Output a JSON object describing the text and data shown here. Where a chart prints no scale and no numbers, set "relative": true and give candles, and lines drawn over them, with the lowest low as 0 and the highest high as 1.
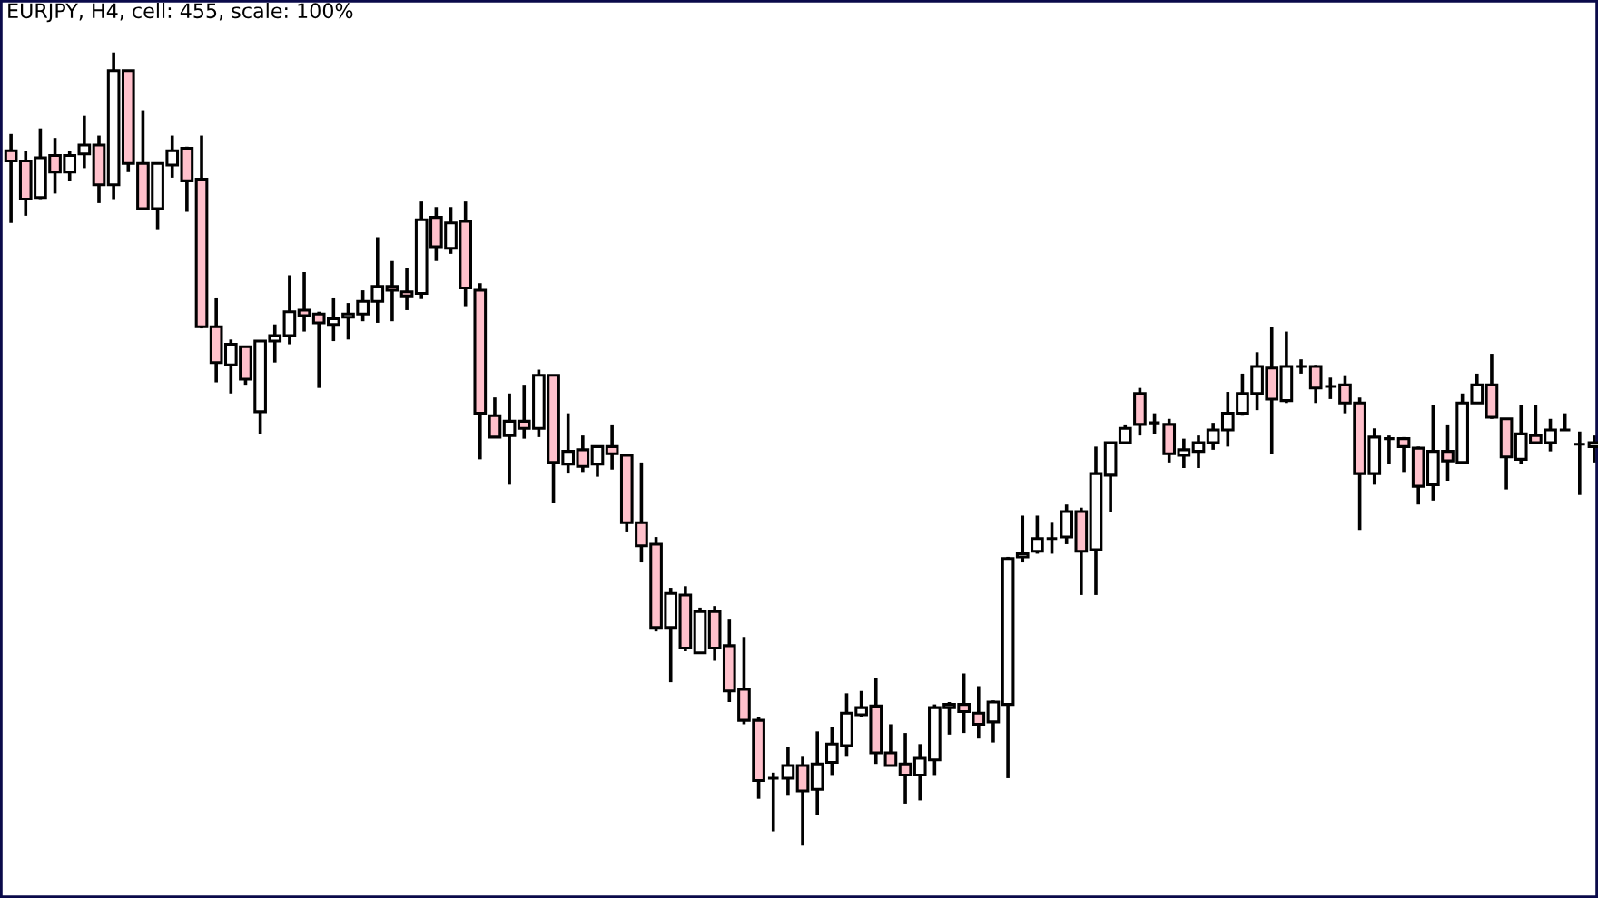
{
  "chart_data": {
    "type": "candlestick",
    "title": "EURJPY, H4, cell: 455, scale: 100%",
    "relative": true,
    "categories": [
      null,
      null,
      null,
      null,
      null,
      null,
      null,
      null,
      null,
      null,
      null,
      null,
      null,
      null,
      null,
      null,
      null,
      null,
      null,
      null,
      null,
      null,
      null,
      null,
      null,
      null,
      null,
      null,
      null,
      null,
      null,
      null,
      null,
      null,
      null,
      null,
      null,
      null,
      null,
      null,
      null,
      null,
      null,
      null,
      null,
      null,
      null,
      null,
      null,
      null,
      null,
      null,
      null,
      null,
      null,
      null,
      null,
      null,
      null,
      null,
      null,
      null,
      null,
      null,
      null,
      null,
      null,
      null,
      null,
      null,
      null,
      null,
      null,
      null,
      null,
      null,
      null,
      null,
      null,
      null,
      null,
      null,
      null,
      null,
      null,
      null,
      null,
      null,
      null,
      null,
      null,
      null,
      null,
      null,
      null,
      null,
      null,
      null,
      null,
      null,
      null,
      null,
      null,
      null,
      null,
      null,
      null,
      null,
      null
    ],
    "ohlc": [
      [
        0.876,
        0.897,
        0.785,
        0.863
      ],
      [
        0.863,
        0.876,
        0.794,
        0.815
      ],
      [
        0.817,
        0.904,
        0.815,
        0.867
      ],
      [
        0.87,
        0.892,
        0.822,
        0.849
      ],
      [
        0.849,
        0.876,
        0.838,
        0.87
      ],
      [
        0.872,
        0.92,
        0.854,
        0.883
      ],
      [
        0.883,
        0.895,
        0.81,
        0.833
      ],
      [
        0.833,
        1,
        0.815,
        0.977
      ],
      [
        0.977,
        0.977,
        0.849,
        0.86
      ],
      [
        0.86,
        0.927,
        0.803,
        0.803
      ],
      [
        0.803,
        0.86,
        0.776,
        0.86
      ],
      [
        0.858,
        0.895,
        0.842,
        0.876
      ],
      [
        0.879,
        0.881,
        0.799,
        0.838
      ],
      [
        0.84,
        0.895,
        0.652,
        0.654
      ],
      [
        0.654,
        0.691,
        0.584,
        0.609
      ],
      [
        0.606,
        0.638,
        0.57,
        0.632
      ],
      [
        0.629,
        0.629,
        0.581,
        0.588
      ],
      [
        0.547,
        0.636,
        0.519,
        0.636
      ],
      [
        0.636,
        0.657,
        0.609,
        0.643
      ],
      [
        0.643,
        0.719,
        0.632,
        0.673
      ],
      [
        0.675,
        0.723,
        0.648,
        0.668
      ],
      [
        0.67,
        0.673,
        0.577,
        0.659
      ],
      [
        0.657,
        0.691,
        0.636,
        0.664
      ],
      [
        0.666,
        0.684,
        0.638,
        0.67
      ],
      [
        0.67,
        0.7,
        0.661,
        0.686
      ],
      [
        0.686,
        0.767,
        0.659,
        0.705
      ],
      [
        0.705,
        0.737,
        0.661,
        0.7
      ],
      [
        0.698,
        0.728,
        0.675,
        0.693
      ],
      [
        0.696,
        0.812,
        0.689,
        0.789
      ],
      [
        0.792,
        0.805,
        0.737,
        0.755
      ],
      [
        0.753,
        0.805,
        0.746,
        0.785
      ],
      [
        0.787,
        0.812,
        0.68,
        0.703
      ],
      [
        0.7,
        0.709,
        0.487,
        0.545
      ],
      [
        0.542,
        0.565,
        0.515,
        0.515
      ],
      [
        0.517,
        0.57,
        0.455,
        0.535
      ],
      [
        0.535,
        0.581,
        0.513,
        0.526
      ],
      [
        0.526,
        0.6,
        0.515,
        0.593
      ],
      [
        0.593,
        0.593,
        0.432,
        0.483
      ],
      [
        0.481,
        0.545,
        0.469,
        0.497
      ],
      [
        0.499,
        0.517,
        0.471,
        0.478
      ],
      [
        0.481,
        0.503,
        0.465,
        0.503
      ],
      [
        0.503,
        0.531,
        0.474,
        0.494
      ],
      [
        0.492,
        0.492,
        0.396,
        0.407
      ],
      [
        0.407,
        0.483,
        0.357,
        0.378
      ],
      [
        0.38,
        0.389,
        0.27,
        0.275
      ],
      [
        0.275,
        0.325,
        0.206,
        0.318
      ],
      [
        0.316,
        0.327,
        0.245,
        0.249
      ],
      [
        0.243,
        0.3,
        0.243,
        0.295
      ],
      [
        0.295,
        0.302,
        0.233,
        0.249
      ],
      [
        0.252,
        0.286,
        0.181,
        0.195
      ],
      [
        0.197,
        0.263,
        0.153,
        0.158
      ],
      [
        0.158,
        0.162,
        0.059,
        0.082
      ],
      [
        0.085,
        0.092,
        0.018,
        0.085
      ],
      [
        0.085,
        0.124,
        0.064,
        0.101
      ],
      [
        0.101,
        0.112,
        0,
        0.069
      ],
      [
        0.071,
        0.144,
        0.039,
        0.103
      ],
      [
        0.105,
        0.149,
        0.089,
        0.128
      ],
      [
        0.126,
        0.192,
        0.112,
        0.167
      ],
      [
        0.165,
        0.195,
        0.162,
        0.174
      ],
      [
        0.176,
        0.211,
        0.103,
        0.117
      ],
      [
        0.117,
        0.153,
        0.101,
        0.101
      ],
      [
        0.103,
        0.142,
        0.053,
        0.089
      ],
      [
        0.089,
        0.128,
        0.057,
        0.11
      ],
      [
        0.108,
        0.178,
        0.089,
        0.174
      ],
      [
        0.174,
        0.181,
        0.14,
        0.178
      ],
      [
        0.178,
        0.217,
        0.142,
        0.169
      ],
      [
        0.167,
        0.201,
        0.135,
        0.153
      ],
      [
        0.156,
        0.183,
        0.13,
        0.181
      ],
      [
        0.178,
        0.364,
        0.085,
        0.362
      ],
      [
        0.364,
        0.416,
        0.357,
        0.368
      ],
      [
        0.371,
        0.416,
        0.368,
        0.387
      ],
      [
        0.387,
        0.407,
        0.368,
        0.387
      ],
      [
        0.389,
        0.43,
        0.38,
        0.421
      ],
      [
        0.421,
        0.426,
        0.316,
        0.371
      ],
      [
        0.373,
        0.503,
        0.316,
        0.469
      ],
      [
        0.467,
        0.508,
        0.421,
        0.508
      ],
      [
        0.508,
        0.531,
        0.506,
        0.526
      ],
      [
        0.57,
        0.577,
        0.517,
        0.531
      ],
      [
        0.533,
        0.545,
        0.519,
        0.533
      ],
      [
        0.531,
        0.538,
        0.483,
        0.494
      ],
      [
        0.492,
        0.513,
        0.476,
        0.499
      ],
      [
        0.497,
        0.517,
        0.476,
        0.508
      ],
      [
        0.508,
        0.533,
        0.499,
        0.524
      ],
      [
        0.524,
        0.572,
        0.503,
        0.545
      ],
      [
        0.545,
        0.595,
        0.542,
        0.57
      ],
      [
        0.57,
        0.622,
        0.549,
        0.604
      ],
      [
        0.602,
        0.654,
        0.494,
        0.563
      ],
      [
        0.561,
        0.648,
        0.558,
        0.604
      ],
      [
        0.604,
        0.613,
        0.595,
        0.604
      ],
      [
        0.604,
        0.606,
        0.558,
        0.577
      ],
      [
        0.579,
        0.59,
        0.563,
        0.579
      ],
      [
        0.581,
        0.593,
        0.545,
        0.558
      ],
      [
        0.558,
        0.565,
        0.398,
        0.469
      ],
      [
        0.469,
        0.526,
        0.455,
        0.515
      ],
      [
        0.513,
        0.517,
        0.481,
        0.513
      ],
      [
        0.513,
        0.515,
        0.471,
        0.503
      ],
      [
        0.501,
        0.503,
        0.43,
        0.453
      ],
      [
        0.455,
        0.556,
        0.435,
        0.497
      ],
      [
        0.497,
        0.531,
        0.46,
        0.485
      ],
      [
        0.483,
        0.57,
        0.481,
        0.558
      ],
      [
        0.558,
        0.595,
        0.558,
        0.581
      ],
      [
        0.581,
        0.62,
        0.538,
        0.54
      ],
      [
        0.538,
        0.538,
        0.449,
        0.49
      ],
      [
        0.487,
        0.556,
        0.481,
        0.519
      ],
      [
        0.517,
        0.556,
        0.506,
        0.508
      ],
      [
        0.508,
        0.538,
        0.497,
        0.524
      ],
      [
        0.524,
        0.545,
        0.524,
        0.524
      ],
      [
        0.506,
        0.522,
        0.442,
        0.506
      ],
      [
        0.503,
        0.517,
        0.483,
        0.508
      ]
    ],
    "colors": [
      "#ffc0cb",
      "#ffc0cb",
      "#ffffff",
      "#ffc0cb",
      "#ffffff",
      "#ffffff",
      "#ffc0cb",
      "#ffffff",
      "#ffc0cb",
      "#ffc0cb",
      "#ffffff",
      "#ffffff",
      "#ffc0cb",
      "#ffc0cb",
      "#ffc0cb",
      "#ffffff",
      "#ffc0cb",
      "#ffffff",
      "#ffffff",
      "#ffffff",
      "#ffc0cb",
      "#ffc0cb",
      "#ffffff",
      "#ffffff",
      "#ffffff",
      "#ffffff",
      "#ffc0cb",
      "#ffc0cb",
      "#ffffff",
      "#ffc0cb",
      "#ffffff",
      "#ffc0cb",
      "#ffc0cb",
      "#ffc0cb",
      "#ffffff",
      "#ffc0cb",
      "#ffffff",
      "#ffc0cb",
      "#ffffff",
      "#ffc0cb",
      "#ffffff",
      "#ffc0cb",
      "#ffc0cb",
      "#ffc0cb",
      "#ffc0cb",
      "#ffffff",
      "#ffc0cb",
      "#ffffff",
      "#ffc0cb",
      "#ffc0cb",
      "#ffc0cb",
      "#ffc0cb",
      "#000000",
      "#ffffff",
      "#ffc0cb",
      "#ffffff",
      "#ffffff",
      "#ffffff",
      "#ffffff",
      "#ffc0cb",
      "#ffc0cb",
      "#ffc0cb",
      "#ffffff",
      "#ffffff",
      "#ffffff",
      "#ffc0cb",
      "#ffc0cb",
      "#ffffff",
      "#ffffff",
      "#ffffff",
      "#ffffff",
      "#000000",
      "#ffffff",
      "#ffc0cb",
      "#ffffff",
      "#ffffff",
      "#ffffff",
      "#ffc0cb",
      "#000000",
      "#ffc0cb",
      "#ffffff",
      "#ffffff",
      "#ffffff",
      "#ffffff",
      "#ffffff",
      "#ffffff",
      "#ffc0cb",
      "#ffffff",
      "#000000",
      "#ffc0cb",
      "#000000",
      "#ffc0cb",
      "#ffc0cb",
      "#ffffff",
      "#000000",
      "#ffc0cb",
      "#ffc0cb",
      "#ffffff",
      "#ffc0cb",
      "#ffffff",
      "#ffffff",
      "#ffc0cb",
      "#ffc0cb",
      "#ffffff",
      "#ffc0cb",
      "#ffffff",
      "#000000",
      "#000000",
      "#ffffff"
    ]
  }
}
